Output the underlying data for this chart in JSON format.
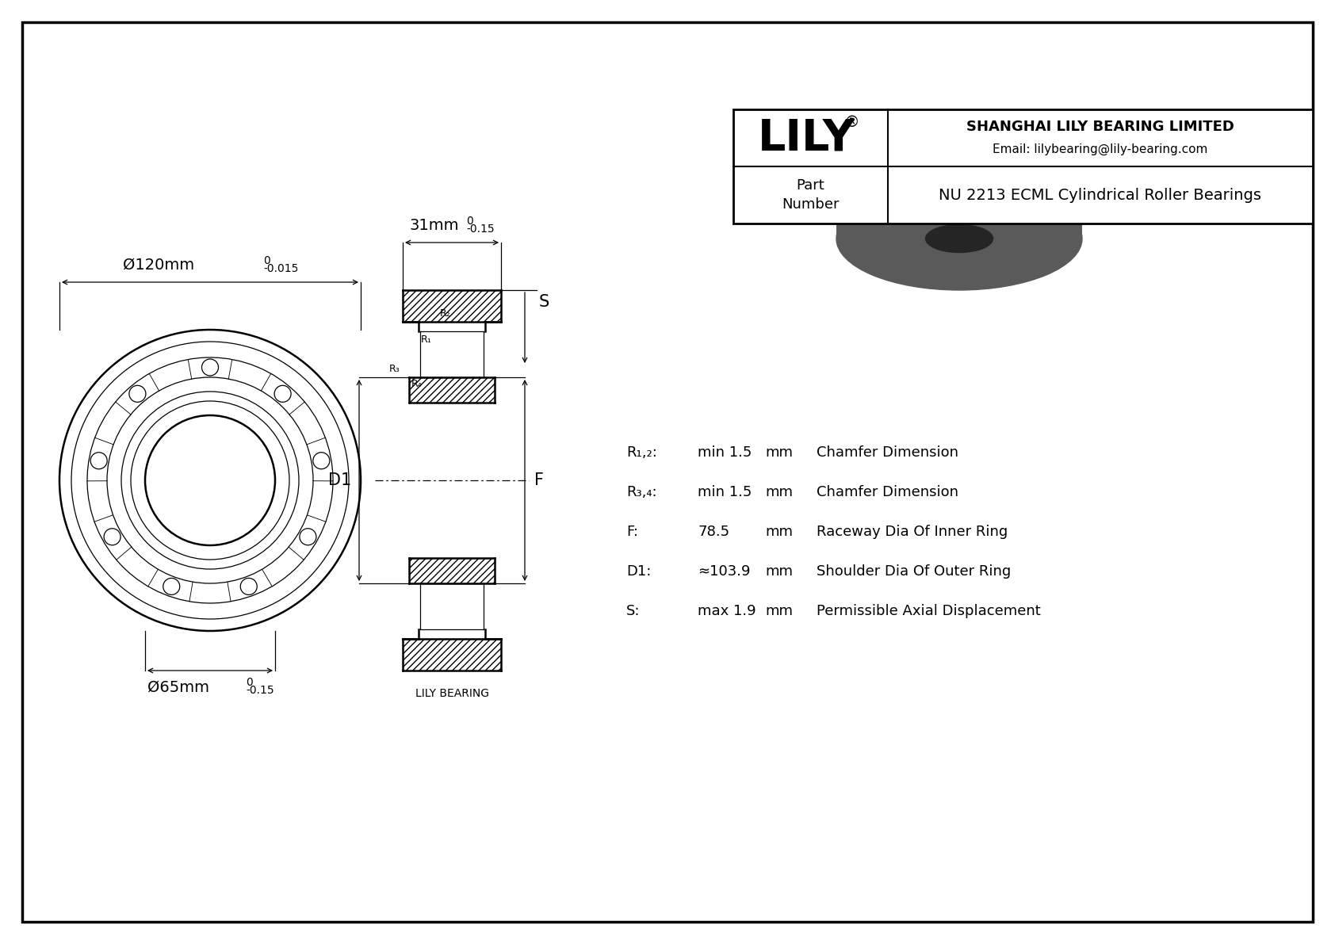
{
  "bg_color": "#ffffff",
  "line_color": "#000000",
  "title": "NU 2213 ECML Cylindrical Roller Bearings",
  "company": "SHANGHAI LILY BEARING LIMITED",
  "email": "Email: lilybearing@lily-bearing.com",
  "lily_bearing_label": "LILY BEARING",
  "dim_outer": "Ø120mm",
  "dim_outer_tol_top": "0",
  "dim_outer_tol_bot": "-0.015",
  "dim_inner": "Ø65mm",
  "dim_inner_tol_top": "0",
  "dim_inner_tol_bot": "-0.15",
  "dim_width": "31mm",
  "dim_width_tol_top": "0",
  "dim_width_tol_bot": "-0.15",
  "params": [
    [
      "R₁,₂:",
      "min 1.5",
      "mm",
      "Chamfer Dimension"
    ],
    [
      "R₃,₄:",
      "min 1.5",
      "mm",
      "Chamfer Dimension"
    ],
    [
      "F:",
      "78.5",
      "mm",
      "Raceway Dia Of Inner Ring"
    ],
    [
      "D1:",
      "≈103.9",
      "mm",
      "Shoulder Dia Of Outer Ring"
    ],
    [
      "S:",
      "max 1.9",
      "mm",
      "Permissible Axial Displacement"
    ]
  ]
}
